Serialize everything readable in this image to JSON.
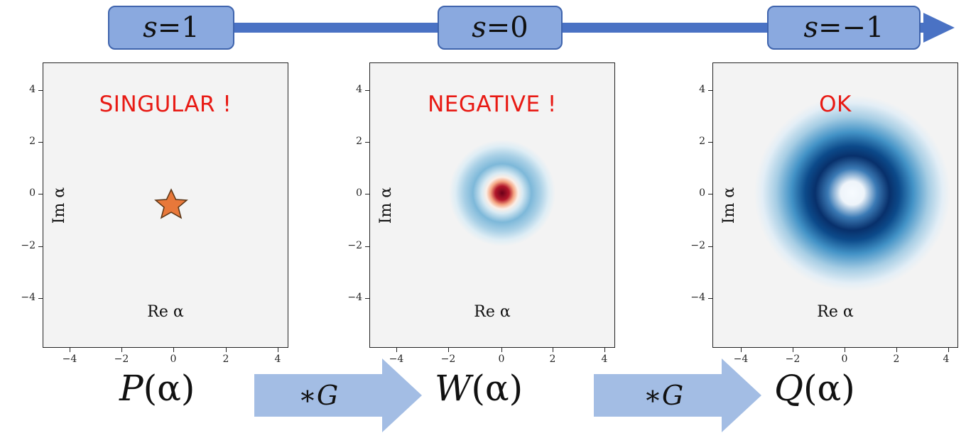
{
  "timeline": {
    "s_labels": [
      {
        "var": "s",
        "eq": " = ",
        "val": "1"
      },
      {
        "var": "s",
        "eq": " = ",
        "val": "0"
      },
      {
        "var": "s",
        "eq": " = ",
        "val": "−1"
      }
    ],
    "colors": {
      "bar": "#4a72c4",
      "box_fill": "#8aa9df",
      "box_border": "#3f64ad"
    }
  },
  "panels": [
    {
      "status": "SINGULAR !",
      "xlabel": "Re α",
      "ylabel": "Im α",
      "distribution": "point (star marker)",
      "marker_color": "#e8783a"
    },
    {
      "status": "NEGATIVE !",
      "xlabel": "Re α",
      "ylabel": "Im α",
      "distribution": "Wigner function, negative core",
      "colormap": "RdBu"
    },
    {
      "status": "OK",
      "xlabel": "Re α",
      "ylabel": "Im α",
      "distribution": "Husimi Q ring",
      "colormap": "Blues"
    }
  ],
  "axis_ticks": {
    "y": [
      "4",
      "2",
      "0",
      "−2",
      "−4"
    ],
    "x": [
      "−4",
      "−2",
      "0",
      "2",
      "4"
    ]
  },
  "functions": [
    {
      "name": "P",
      "arg": "(α)"
    },
    {
      "name": "W",
      "arg": "(α)"
    },
    {
      "name": "Q",
      "arg": "(α)"
    }
  ],
  "convolutions": [
    {
      "label": "∗G"
    },
    {
      "label": "∗G"
    }
  ],
  "colors": {
    "status_text": "#e81a14",
    "conv_arrow": "#a3bde4",
    "panel_bg": "#f3f3f3"
  }
}
